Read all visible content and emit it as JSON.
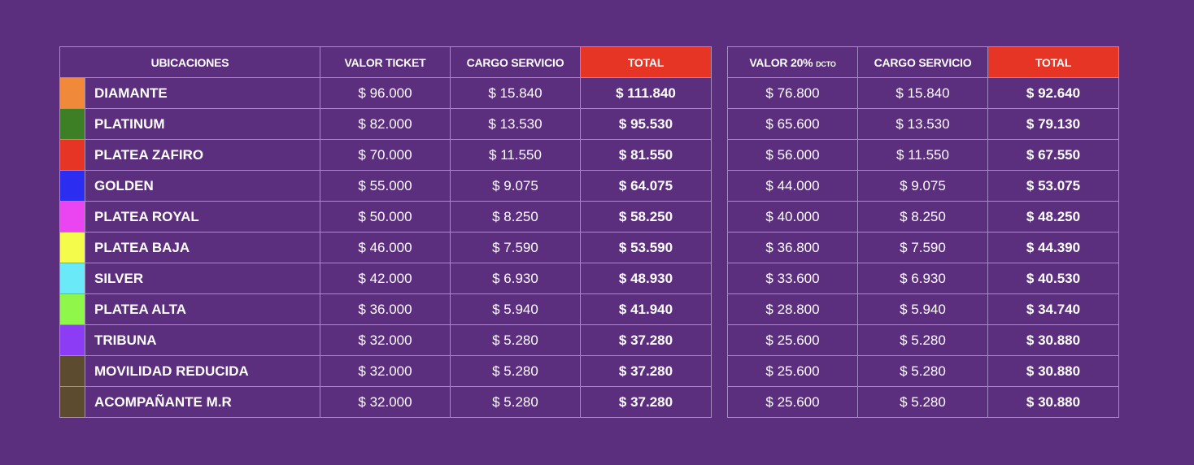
{
  "headers": {
    "ubicaciones": "UBICACIONES",
    "valor_ticket": "VALOR TICKET",
    "cargo_servicio": "CARGO SERVICIO",
    "total": "TOTAL",
    "valor_descuento": "VALOR 20%",
    "valor_descuento_suffix": "DCTO",
    "cargo_servicio_2": "CARGO SERVICIO",
    "total_2": "TOTAL"
  },
  "rows": [
    {
      "name": "DIAMANTE",
      "color": "#f08a3a",
      "valor": "$ 96.000",
      "cargo": "$ 15.840",
      "total": "$ 111.840",
      "valor_dcto": "$ 76.800",
      "cargo_dcto": "$ 15.840",
      "total_dcto": "$ 92.640"
    },
    {
      "name": "PLATINUM",
      "color": "#3d7f24",
      "valor": "$ 82.000",
      "cargo": "$ 13.530",
      "total": "$ 95.530",
      "valor_dcto": "$ 65.600",
      "cargo_dcto": "$ 13.530",
      "total_dcto": "$ 79.130"
    },
    {
      "name": "PLATEA ZAFIRO",
      "color": "#e63525",
      "valor": "$ 70.000",
      "cargo": "$ 11.550",
      "total": "$ 81.550",
      "valor_dcto": "$ 56.000",
      "cargo_dcto": "$ 11.550",
      "total_dcto": "$ 67.550"
    },
    {
      "name": "GOLDEN",
      "color": "#2b2ef0",
      "valor": "$ 55.000",
      "cargo": "$ 9.075",
      "total": "$ 64.075",
      "valor_dcto": "$ 44.000",
      "cargo_dcto": "$ 9.075",
      "total_dcto": "$ 53.075"
    },
    {
      "name": "PLATEA ROYAL",
      "color": "#ea45f0",
      "valor": "$ 50.000",
      "cargo": "$ 8.250",
      "total": "$ 58.250",
      "valor_dcto": "$ 40.000",
      "cargo_dcto": "$ 8.250",
      "total_dcto": "$ 48.250"
    },
    {
      "name": "PLATEA BAJA",
      "color": "#f5fb4a",
      "valor": "$ 46.000",
      "cargo": "$ 7.590",
      "total": "$ 53.590",
      "valor_dcto": "$ 36.800",
      "cargo_dcto": "$ 7.590",
      "total_dcto": "$ 44.390"
    },
    {
      "name": "SILVER",
      "color": "#6ae9f8",
      "valor": "$ 42.000",
      "cargo": "$ 6.930",
      "total": "$ 48.930",
      "valor_dcto": "$ 33.600",
      "cargo_dcto": "$ 6.930",
      "total_dcto": "$ 40.530"
    },
    {
      "name": "PLATEA ALTA",
      "color": "#8ef74a",
      "valor": "$ 36.000",
      "cargo": "$ 5.940",
      "total": "$ 41.940",
      "valor_dcto": "$ 28.800",
      "cargo_dcto": "$ 5.940",
      "total_dcto": "$ 34.740"
    },
    {
      "name": "TRIBUNA",
      "color": "#8c3cf5",
      "valor": "$ 32.000",
      "cargo": "$ 5.280",
      "total": "$ 37.280",
      "valor_dcto": "$ 25.600",
      "cargo_dcto": "$ 5.280",
      "total_dcto": "$ 30.880"
    },
    {
      "name": "MOVILIDAD REDUCIDA",
      "color": "#5d4b30",
      "valor": "$ 32.000",
      "cargo": "$ 5.280",
      "total": "$ 37.280",
      "valor_dcto": "$ 25.600",
      "cargo_dcto": "$ 5.280",
      "total_dcto": "$ 30.880"
    },
    {
      "name": "ACOMPAÑANTE M.R",
      "color": "#5d4b30",
      "valor": "$ 32.000",
      "cargo": "$ 5.280",
      "total": "$ 37.280",
      "valor_dcto": "$ 25.600",
      "cargo_dcto": "$ 5.280",
      "total_dcto": "$ 30.880"
    }
  ]
}
